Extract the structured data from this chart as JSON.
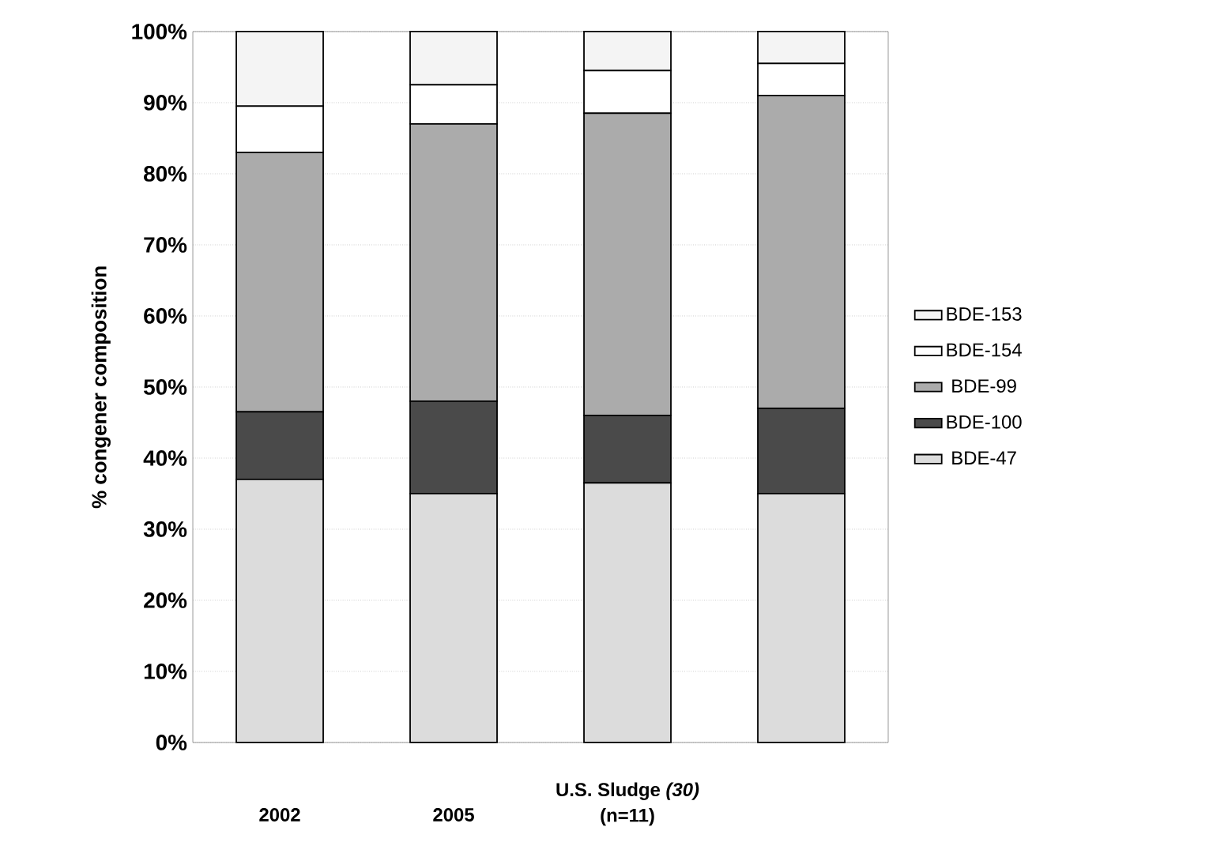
{
  "chart_data": {
    "type": "bar",
    "stacked": true,
    "ylabel": "% congener composition",
    "categories": [
      "2002",
      "2005",
      "(n=11)",
      null
    ],
    "annotations": [
      "U.S. Sludge *(30)*"
    ],
    "series": [
      {
        "name": "BDE-47",
        "color": "#dcdcdc",
        "values": [
          37,
          35,
          36.5,
          35
        ]
      },
      {
        "name": "BDE-100",
        "color": "#4a4a4a",
        "values": [
          9.5,
          13,
          9.5,
          12
        ]
      },
      {
        "name": "BDE-99",
        "color": "#ababab",
        "values": [
          36.5,
          39,
          42.5,
          44
        ]
      },
      {
        "name": "BDE-154",
        "color": "#ffffff",
        "values": [
          6.5,
          5.5,
          6,
          4.5
        ]
      },
      {
        "name": "BDE-153",
        "color": "#f4f4f4",
        "values": [
          10.5,
          7.5,
          5.5,
          4.5
        ]
      }
    ],
    "ylim": [
      0,
      100
    ],
    "yticks": [
      {
        "value": 0,
        "label": "0%"
      },
      {
        "value": 10,
        "label": "10%"
      },
      {
        "value": 20,
        "label": "20%"
      },
      {
        "value": 30,
        "label": "30%"
      },
      {
        "value": 40,
        "label": "40%"
      },
      {
        "value": 50,
        "label": "50%"
      },
      {
        "value": 60,
        "label": "60%"
      },
      {
        "value": 70,
        "label": "70%"
      },
      {
        "value": 80,
        "label": "80%"
      },
      {
        "value": 90,
        "label": "90%"
      },
      {
        "value": 100,
        "label": "100%"
      }
    ],
    "grid": "y",
    "legend": "right"
  }
}
